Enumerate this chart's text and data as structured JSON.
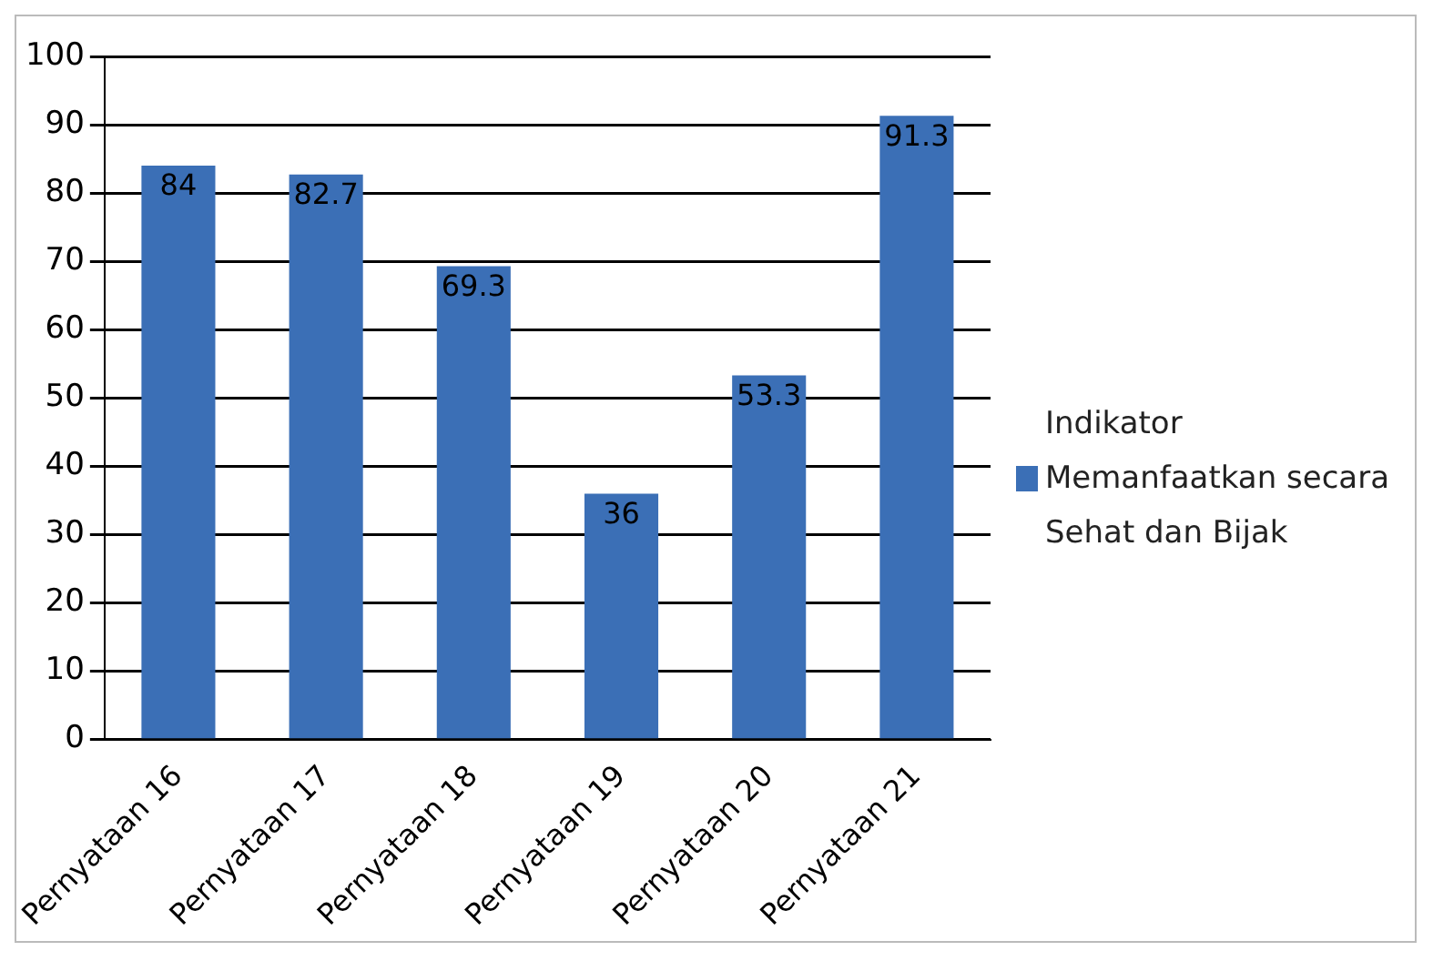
{
  "chart_data": {
    "type": "bar",
    "categories": [
      "Pernyataan 16",
      "Pernyataan 17",
      "Pernyataan 18",
      "Pernyataan 19",
      "Pernyataan 20",
      "Pernyataan 21"
    ],
    "series": [
      {
        "name": "Indikator Memanfaatkan secara Sehat dan Bijak",
        "color": "#3b6fb6",
        "values": [
          84,
          82.7,
          69.3,
          36,
          53.3,
          91.3
        ]
      }
    ],
    "ylim": [
      0,
      100
    ],
    "yticks": [
      0,
      10,
      20,
      30,
      40,
      50,
      60,
      70,
      80,
      90,
      100
    ],
    "grid": "y",
    "legend": "right",
    "data_labels": true
  }
}
